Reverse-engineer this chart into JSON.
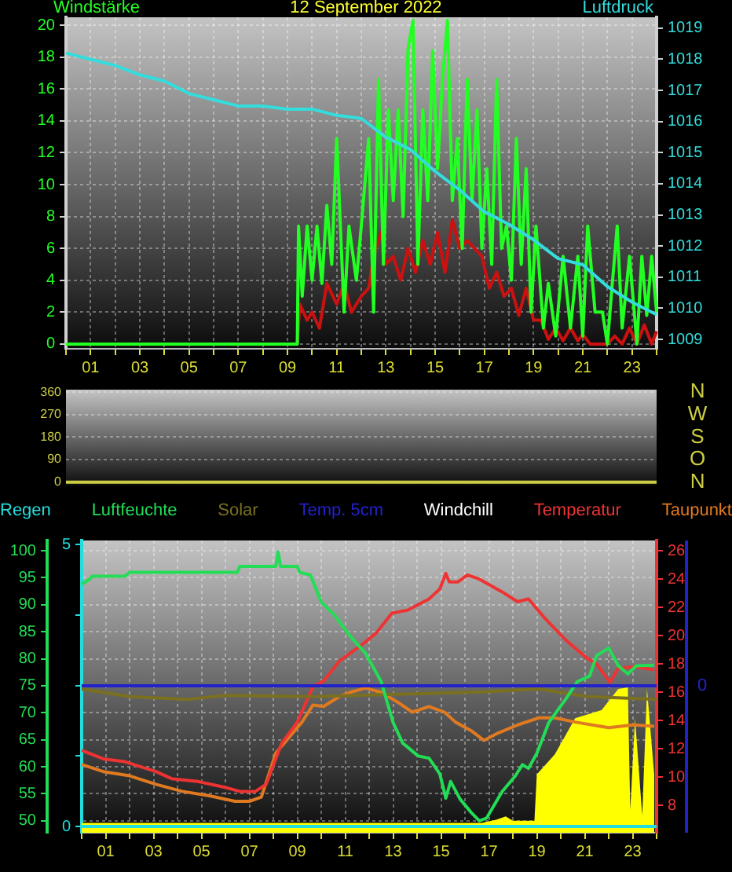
{
  "chart_data": [
    {
      "type": "line",
      "title": "12 September 2022",
      "ylabel": "Windstärke",
      "y2label": "Luftdruck",
      "marker": "none",
      "grid": true,
      "xlim": [
        0,
        24
      ],
      "xticks": [
        {
          "value": 0,
          "label": null
        },
        {
          "value": 1,
          "label": "01"
        },
        {
          "value": 2,
          "label": null
        },
        {
          "value": 3,
          "label": "03"
        },
        {
          "value": 4,
          "label": null
        },
        {
          "value": 5,
          "label": "05"
        },
        {
          "value": 6,
          "label": null
        },
        {
          "value": 7,
          "label": "07"
        },
        {
          "value": 8,
          "label": null
        },
        {
          "value": 9,
          "label": "09"
        },
        {
          "value": 10,
          "label": null
        },
        {
          "value": 11,
          "label": "11"
        },
        {
          "value": 12,
          "label": null
        },
        {
          "value": 13,
          "label": "13"
        },
        {
          "value": 14,
          "label": null
        },
        {
          "value": 15,
          "label": "15"
        },
        {
          "value": 16,
          "label": null
        },
        {
          "value": 17,
          "label": "17"
        },
        {
          "value": 18,
          "label": null
        },
        {
          "value": 19,
          "label": "19"
        },
        {
          "value": 20,
          "label": null
        },
        {
          "value": 21,
          "label": "21"
        },
        {
          "value": 22,
          "label": null
        },
        {
          "value": 23,
          "label": "23"
        },
        {
          "value": 24,
          "label": null
        }
      ],
      "ylim": [
        -0.3,
        20.5
      ],
      "yticks": [
        0,
        2,
        4,
        6,
        8,
        10,
        12,
        14,
        16,
        18,
        20
      ],
      "y2lim": [
        1008.7,
        1019.35
      ],
      "y2ticks": [
        1009,
        1010,
        1011,
        1012,
        1013,
        1014,
        1015,
        1016,
        1017,
        1018,
        1019
      ],
      "series": [
        {
          "color": "#33dddd",
          "axis": "y2",
          "x": [
            0,
            1,
            2,
            3,
            4,
            5,
            6,
            7,
            8,
            9,
            10,
            11,
            12,
            13,
            14,
            15,
            16,
            17,
            18,
            19,
            20,
            21,
            22,
            23,
            24
          ],
          "values": [
            1018.2,
            1018.0,
            1017.8,
            1017.5,
            1017.3,
            1016.9,
            1016.7,
            1016.5,
            1016.5,
            1016.4,
            1016.4,
            1016.2,
            1016.1,
            1015.5,
            1015.1,
            1014.4,
            1013.8,
            1013.1,
            1012.7,
            1012.2,
            1011.6,
            1011.4,
            1010.7,
            1010.2,
            1009.8
          ]
        },
        {
          "color": "#22ff22",
          "x": [
            0,
            9.4,
            9.45,
            9.6,
            9.8,
            10,
            10.2,
            10.4,
            10.6,
            10.8,
            11,
            11.3,
            11.5,
            11.8,
            12,
            12.3,
            12.5,
            12.7,
            12.9,
            13.1,
            13.3,
            13.5,
            13.7,
            13.9,
            14.1,
            14.3,
            14.5,
            14.7,
            14.9,
            15.1,
            15.3,
            15.5,
            15.7,
            15.9,
            16.1,
            16.3,
            16.5,
            16.7,
            16.9,
            17.1,
            17.3,
            17.5,
            17.7,
            17.9,
            18.1,
            18.3,
            18.5,
            18.7,
            18.9,
            19.1,
            19.4,
            19.6,
            19.9,
            20.2,
            20.5,
            20.8,
            21,
            21.2,
            21.5,
            21.8,
            22,
            22.2,
            22.4,
            22.6,
            22.9,
            23.2,
            23.4,
            23.6,
            23.8,
            24
          ],
          "values": [
            0,
            0,
            7.4,
            3,
            7.4,
            4,
            7.4,
            3.8,
            8.7,
            5,
            12.9,
            2,
            7.4,
            4,
            7.4,
            12.9,
            2,
            16.6,
            5,
            14.7,
            9,
            14.7,
            8,
            18.5,
            20.3,
            5,
            14.7,
            9,
            18.4,
            11,
            16.6,
            20.3,
            9,
            12.9,
            6,
            16.6,
            9,
            14.7,
            6,
            11,
            5,
            16.6,
            6,
            7.4,
            4,
            12.9,
            5,
            11,
            2,
            7.4,
            1,
            3.8,
            0.5,
            5.5,
            1,
            5.5,
            0.5,
            7.4,
            2,
            2,
            0,
            3.8,
            7.4,
            1,
            5.5,
            0,
            5.5,
            1.8,
            5.5,
            2
          ]
        },
        {
          "color": "#cc1111",
          "x": [
            0,
            9.4,
            9.5,
            9.8,
            10,
            10.3,
            10.6,
            11,
            11.3,
            11.6,
            12,
            12.3,
            12.5,
            12.8,
            13,
            13.3,
            13.6,
            13.9,
            14.2,
            14.5,
            14.8,
            15.1,
            15.4,
            15.7,
            16,
            16.3,
            16.6,
            16.9,
            17.2,
            17.5,
            17.8,
            18.1,
            18.4,
            18.7,
            19,
            19.3,
            19.6,
            19.9,
            20.2,
            20.5,
            20.8,
            21,
            21.3,
            22,
            22.3,
            22.6,
            22.9,
            23.2,
            23.5,
            23.8,
            24
          ],
          "values": [
            0,
            0,
            2.5,
            1.5,
            2,
            1,
            3.8,
            2.5,
            3.8,
            2,
            3,
            3.5,
            5.5,
            7,
            5,
            5.5,
            4,
            6,
            4.5,
            6.5,
            5,
            7,
            4.5,
            7.8,
            6,
            6.5,
            6,
            5.5,
            3.5,
            4.5,
            3,
            3.5,
            1.8,
            3.5,
            1.5,
            1.5,
            0.3,
            1,
            0.2,
            1,
            0.2,
            0.6,
            0,
            0,
            0.5,
            0,
            1,
            0,
            1.2,
            0,
            0.8
          ]
        }
      ]
    },
    {
      "type": "line",
      "marker": "none",
      "grid": "y",
      "tick_labels": "y",
      "xlim": [
        0,
        24
      ],
      "ylim": [
        -15,
        371
      ],
      "yticks": [
        0,
        90,
        180,
        270,
        360
      ],
      "annotations": [
        "N",
        "W",
        "S",
        "O",
        "N"
      ],
      "series": [
        {
          "color": "#cccc44",
          "x": [
            0,
            24
          ],
          "values": [
            0,
            0
          ]
        }
      ]
    },
    {
      "type": "line",
      "marker": "none",
      "grid": true,
      "legend": "top",
      "xlim": [
        0,
        24
      ],
      "xticks": [
        {
          "value": 0,
          "label": null
        },
        {
          "value": 1,
          "label": "01"
        },
        {
          "value": 2,
          "label": null
        },
        {
          "value": 3,
          "label": "03"
        },
        {
          "value": 4,
          "label": null
        },
        {
          "value": 5,
          "label": "05"
        },
        {
          "value": 6,
          "label": null
        },
        {
          "value": 7,
          "label": "07"
        },
        {
          "value": 8,
          "label": null
        },
        {
          "value": 9,
          "label": "09"
        },
        {
          "value": 10,
          "label": null
        },
        {
          "value": 11,
          "label": "11"
        },
        {
          "value": 12,
          "label": null
        },
        {
          "value": 13,
          "label": "13"
        },
        {
          "value": 14,
          "label": null
        },
        {
          "value": 15,
          "label": "15"
        },
        {
          "value": 16,
          "label": null
        },
        {
          "value": 17,
          "label": "17"
        },
        {
          "value": 18,
          "label": null
        },
        {
          "value": 19,
          "label": "19"
        },
        {
          "value": 20,
          "label": null
        },
        {
          "value": 21,
          "label": "21"
        },
        {
          "value": 22,
          "label": null
        },
        {
          "value": 23,
          "label": "23"
        },
        {
          "value": 24,
          "label": null
        }
      ],
      "ylim": [
        47.8,
        101.9
      ],
      "yticks": [
        50,
        55,
        60,
        65,
        70,
        75,
        80,
        85,
        90,
        95,
        100
      ],
      "y2lim": [
        6.08,
        26.73
      ],
      "y2ticks": [
        8,
        10,
        12,
        14,
        16,
        18,
        20,
        22,
        24,
        26
      ],
      "y3lim": [
        -0.11,
        5.07
      ],
      "y3ticks": [
        0,
        {
          "value": 1.25,
          "label": null
        },
        {
          "value": 2.5,
          "label": null
        },
        {
          "value": 3.75,
          "label": null
        },
        5
      ],
      "ref_lines": [
        {
          "axis": "y",
          "value": 75,
          "color": "#2222cc"
        }
      ],
      "annotations": [
        {
          "text": "0",
          "x": 24,
          "y": 75
        }
      ],
      "series": [
        {
          "name": "Regen",
          "color": "#22dddd",
          "axis": "y3",
          "x": [
            0,
            24
          ],
          "values": [
            0,
            0
          ]
        },
        {
          "name": "Luftfeuchte",
          "color": "#22dd55",
          "x": [
            0,
            0.35,
            0.45,
            1.8,
            2,
            6.5,
            6.6,
            8.1,
            8.2,
            8.3,
            9,
            9.1,
            9.55,
            10,
            10.55,
            11.2,
            11.85,
            12.5,
            13,
            13.4,
            14.05,
            14.5,
            14.95,
            15.2,
            15.4,
            15.8,
            16.25,
            16.6,
            16.9,
            17.55,
            18.1,
            18.4,
            18.65,
            19,
            19.5,
            20.2,
            20.7,
            21.2,
            21.5,
            22,
            22.4,
            22.8,
            23.15,
            23.9
          ],
          "values": [
            93.8,
            94.8,
            95.3,
            95.3,
            96,
            96,
            97.1,
            97.1,
            99.8,
            97.1,
            97.1,
            96,
            95.5,
            90.5,
            88.1,
            84.2,
            81,
            75.8,
            68.2,
            64.4,
            62,
            61.6,
            58.7,
            54.2,
            57.3,
            54,
            51.6,
            50,
            50.5,
            55.4,
            58.3,
            60.4,
            59.7,
            62.5,
            68.2,
            72.5,
            75.8,
            76.8,
            80.6,
            82,
            78.7,
            77.2,
            78.7,
            78.8
          ]
        },
        {
          "name": "Solar",
          "color": "#7a7020",
          "x": [
            0,
            2,
            4.4,
            6,
            9.7,
            16.9,
            19.1,
            21.1,
            24
          ],
          "values": [
            74.4,
            73,
            72.5,
            73.2,
            73,
            73.9,
            74.4,
            73,
            72.5
          ]
        },
        {
          "name": "Temp. 5cm",
          "color": "#2222cc"
        },
        {
          "name": "Windchill",
          "color": "#ffffff"
        },
        {
          "name": "Temperatur",
          "color": "#ee3333",
          "axis": "y2",
          "x": [
            0,
            0.9,
            1.8,
            3.1,
            3.75,
            4.85,
            5.95,
            6.6,
            7.25,
            7.7,
            8.35,
            9,
            9.65,
            10.1,
            10.75,
            11.65,
            12.3,
            12.95,
            13.6,
            14.5,
            14.95,
            15.2,
            15.35,
            15.7,
            16.1,
            16.6,
            17.55,
            18.2,
            18.65,
            19.3,
            20.2,
            21.1,
            21.5,
            22.05,
            22.4,
            23.05,
            23.9
          ],
          "values": [
            11.9,
            11.3,
            11.1,
            10.4,
            9.9,
            9.7,
            9.3,
            9,
            9,
            9.5,
            12.4,
            13.9,
            16.4,
            16.8,
            18.2,
            19.3,
            20.2,
            21.6,
            21.8,
            22.6,
            23.3,
            24.4,
            23.8,
            23.8,
            24.3,
            24,
            23.1,
            22.4,
            22.6,
            21.3,
            19.7,
            18.4,
            18,
            16.7,
            17.7,
            17.8,
            17.6
          ]
        },
        {
          "name": "Taupunkt",
          "color": "#e07a20",
          "axis": "y2",
          "x": [
            0,
            0.9,
            2,
            3.1,
            4.2,
            5.3,
            6.4,
            7,
            7.5,
            8.1,
            8.8,
            9.2,
            9.65,
            10.1,
            10.75,
            11.2,
            11.85,
            12.5,
            13.2,
            13.8,
            14.5,
            15.15,
            15.6,
            16.25,
            16.8,
            17.35,
            18.2,
            19.1,
            19.75,
            20.6,
            22,
            23.05,
            23.9
          ],
          "values": [
            10.9,
            10.4,
            10.1,
            9.5,
            9,
            8.7,
            8.3,
            8.3,
            8.6,
            11.7,
            13.1,
            13.9,
            15.1,
            15,
            15.7,
            16,
            16.3,
            16,
            15.3,
            14.6,
            15,
            14.6,
            13.9,
            13.3,
            12.6,
            13.1,
            13.7,
            14.2,
            14.2,
            13.9,
            13.5,
            13.7,
            13.6
          ]
        },
        {
          "type": "area",
          "color": "#ffff00",
          "x": [
            0,
            16.7,
            17.3,
            17.7,
            18,
            18.9,
            19,
            19.75,
            20.6,
            21.7,
            22.4,
            22.8,
            22.9,
            23.1,
            23.4,
            23.6,
            23.9
          ],
          "values": [
            49.6,
            49.6,
            50.2,
            50.8,
            50,
            50,
            58.6,
            62.3,
            69,
            70.5,
            74.4,
            74.7,
            52,
            69,
            51,
            74.4,
            58.6
          ]
        }
      ]
    }
  ]
}
